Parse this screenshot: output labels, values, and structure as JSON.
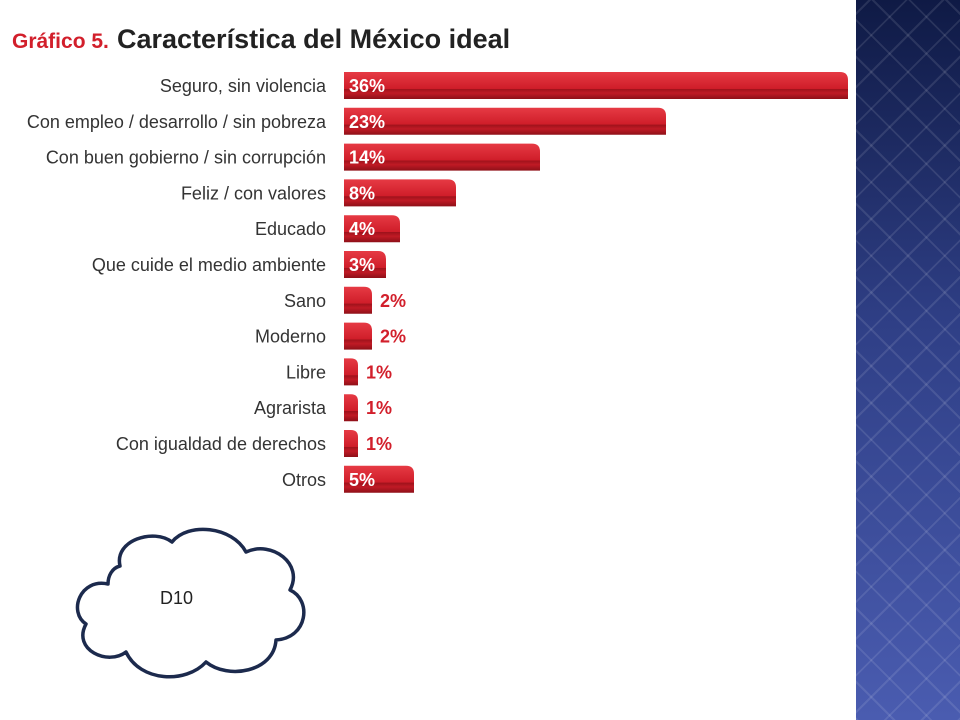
{
  "chart_data": {
    "type": "bar",
    "orientation": "horizontal",
    "title_prefix": "Gráfico 5.",
    "title": "Característica del México ideal",
    "categories": [
      "Seguro, sin violencia",
      "Con empleo / desarrollo / sin pobreza",
      "Con buen gobierno / sin corrupción",
      "Feliz / con valores",
      "Educado",
      "Que cuide el medio ambiente",
      "Sano",
      "Moderno",
      "Libre",
      "Agrarista",
      "Con igualdad de derechos",
      "Otros"
    ],
    "values": [
      36,
      23,
      14,
      8,
      4,
      3,
      2,
      2,
      1,
      1,
      1,
      5
    ],
    "value_labels": [
      "36%",
      "23%",
      "14%",
      "8%",
      "4%",
      "3%",
      "2%",
      "2%",
      "1%",
      "1%",
      "1%",
      "5%"
    ],
    "unit": "%",
    "bar_color": "#d21f2b",
    "xlim": [
      0,
      36
    ],
    "grid": false,
    "legend": "none"
  },
  "annotation": {
    "text": "D10"
  },
  "colors": {
    "accent": "#d21f2b",
    "side_panel": "#2a3470"
  }
}
